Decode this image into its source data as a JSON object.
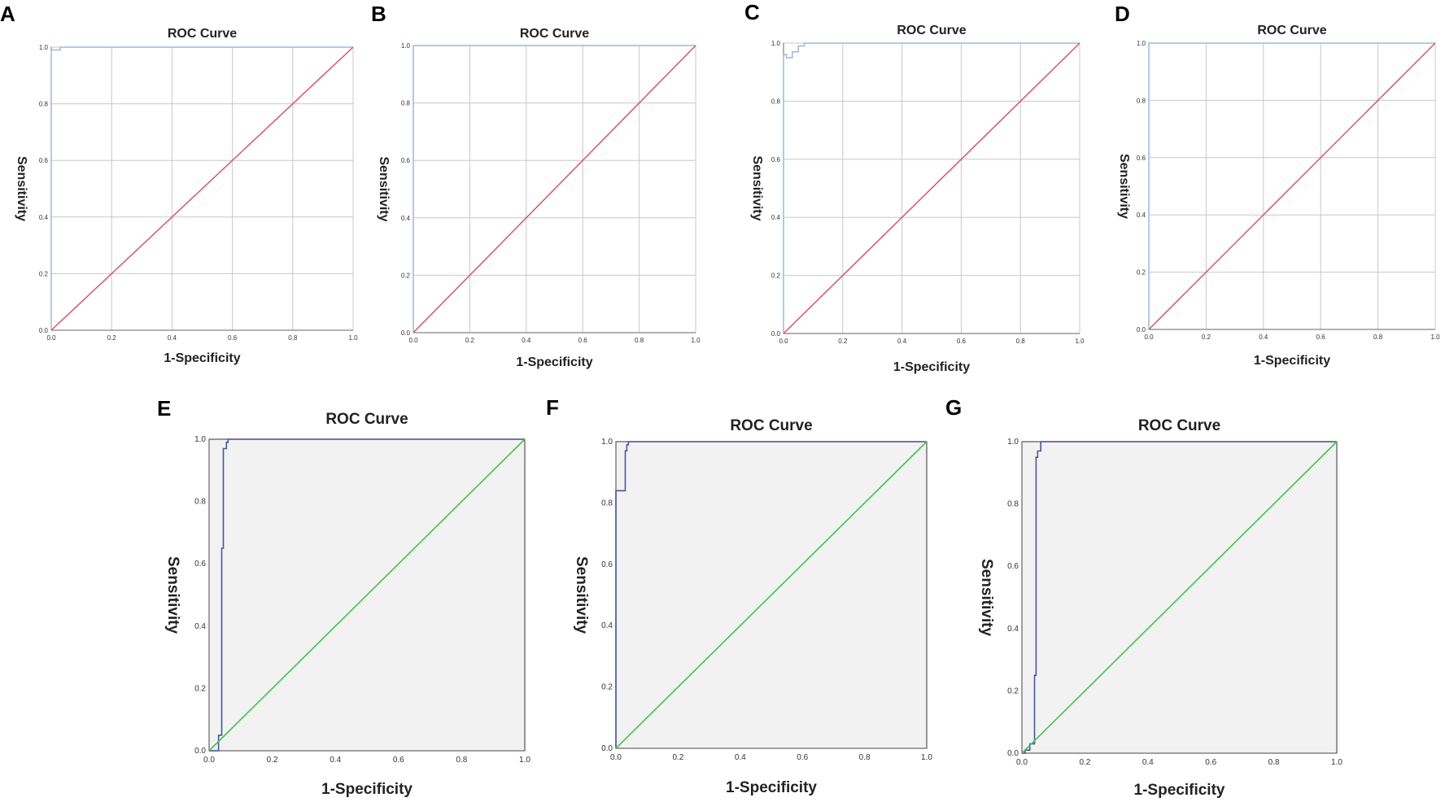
{
  "figure": {
    "panel_labels": [
      "A",
      "B",
      "C",
      "D",
      "E",
      "F",
      "G"
    ]
  },
  "colors": {
    "top_curve": "#9cb9dd",
    "top_reference": "#d9536b",
    "bottom_curve": "#4a55a2",
    "bottom_reference": "#45c24b",
    "bottom_plot_bg": "#f2f2f2",
    "grid": "#c8c8c8"
  },
  "chart_data": [
    {
      "panel": "A",
      "type": "line",
      "title": "ROC Curve",
      "xlabel": "1-Specificity",
      "ylabel": "Sensitivity",
      "xlim": [
        0,
        1
      ],
      "ylim": [
        0,
        1
      ],
      "xticks": [
        "0.0",
        "0.2",
        "0.4",
        "0.6",
        "0.8",
        "1.0"
      ],
      "yticks": [
        "0.0",
        "0.2",
        "0.4",
        "0.6",
        "0.8",
        "1.0"
      ],
      "grid": true,
      "style": "top",
      "series": [
        {
          "name": "ROC",
          "x": [
            0,
            0,
            0.03,
            0.03,
            1
          ],
          "y": [
            0,
            0.99,
            0.99,
            1,
            1
          ]
        },
        {
          "name": "Reference Line",
          "x": [
            0,
            1
          ],
          "y": [
            0,
            1
          ]
        }
      ]
    },
    {
      "panel": "B",
      "type": "line",
      "title": "ROC Curve",
      "xlabel": "1-Specificity",
      "ylabel": "Sensitivity",
      "xlim": [
        0,
        1
      ],
      "ylim": [
        0,
        1
      ],
      "xticks": [
        "0.0",
        "0.2",
        "0.4",
        "0.6",
        "0.8",
        "1.0"
      ],
      "yticks": [
        "0.0",
        "0.2",
        "0.4",
        "0.6",
        "0.8",
        "1.0"
      ],
      "grid": true,
      "style": "top",
      "series": [
        {
          "name": "ROC",
          "x": [
            0,
            0,
            1
          ],
          "y": [
            0,
            1,
            1
          ]
        },
        {
          "name": "Reference Line",
          "x": [
            0,
            1
          ],
          "y": [
            0,
            1
          ]
        }
      ]
    },
    {
      "panel": "C",
      "type": "line",
      "title": "ROC Curve",
      "xlabel": "1-Specificity",
      "ylabel": "Sensitivity",
      "xlim": [
        0,
        1
      ],
      "ylim": [
        0,
        1
      ],
      "xticks": [
        "0.0",
        "0.2",
        "0.4",
        "0.6",
        "0.8",
        "1.0"
      ],
      "yticks": [
        "0.0",
        "0.2",
        "0.4",
        "0.6",
        "0.8",
        "1.0"
      ],
      "grid": true,
      "style": "top",
      "series": [
        {
          "name": "ROC",
          "x": [
            0,
            0,
            0.01,
            0.01,
            0.03,
            0.03,
            0.05,
            0.05,
            0.07,
            0.07,
            1
          ],
          "y": [
            0,
            0.96,
            0.96,
            0.95,
            0.95,
            0.97,
            0.97,
            0.99,
            0.99,
            1,
            1
          ]
        },
        {
          "name": "Reference Line",
          "x": [
            0,
            1
          ],
          "y": [
            0,
            1
          ]
        }
      ]
    },
    {
      "panel": "D",
      "type": "line",
      "title": "ROC Curve",
      "xlabel": "1-Specificity",
      "ylabel": "Sensitivity",
      "xlim": [
        0,
        1
      ],
      "ylim": [
        0,
        1
      ],
      "xticks": [
        "0.0",
        "0.2",
        "0.4",
        "0.6",
        "0.8",
        "1.0"
      ],
      "yticks": [
        "0.0",
        "0.2",
        "0.4",
        "0.6",
        "0.8",
        "1.0"
      ],
      "grid": true,
      "style": "top",
      "series": [
        {
          "name": "ROC",
          "x": [
            0,
            0,
            1
          ],
          "y": [
            0,
            1,
            1
          ]
        },
        {
          "name": "Reference Line",
          "x": [
            0,
            1
          ],
          "y": [
            0,
            1
          ]
        }
      ]
    },
    {
      "panel": "E",
      "type": "line",
      "title": "ROC Curve",
      "xlabel": "1-Specificity",
      "ylabel": "Sensitivity",
      "xlim": [
        0,
        1
      ],
      "ylim": [
        0,
        1
      ],
      "xticks": [
        "0.0",
        "0.2",
        "0.4",
        "0.6",
        "0.8",
        "1.0"
      ],
      "yticks": [
        "0.0",
        "0.2",
        "0.4",
        "0.6",
        "0.8",
        "1.0"
      ],
      "grid": false,
      "style": "bottom",
      "series": [
        {
          "name": "ROC",
          "x": [
            0,
            0.03,
            0.03,
            0.04,
            0.04,
            0.045,
            0.045,
            0.055,
            0.055,
            0.06,
            0.06,
            1
          ],
          "y": [
            0,
            0,
            0.05,
            0.05,
            0.65,
            0.65,
            0.97,
            0.97,
            0.99,
            0.99,
            1,
            1
          ]
        },
        {
          "name": "Reference Line",
          "x": [
            0,
            1
          ],
          "y": [
            0,
            1
          ]
        }
      ]
    },
    {
      "panel": "F",
      "type": "line",
      "title": "ROC Curve",
      "xlabel": "1-Specificity",
      "ylabel": "Sensitivity",
      "xlim": [
        0,
        1
      ],
      "ylim": [
        0,
        1
      ],
      "xticks": [
        "0.0",
        "0.2",
        "0.4",
        "0.6",
        "0.8",
        "1.0"
      ],
      "yticks": [
        "0.0",
        "0.2",
        "0.4",
        "0.6",
        "0.8",
        "1.0"
      ],
      "grid": false,
      "style": "bottom",
      "series": [
        {
          "name": "ROC",
          "x": [
            0,
            0,
            0.03,
            0.03,
            0.035,
            0.035,
            0.04,
            0.04,
            1
          ],
          "y": [
            0,
            0.84,
            0.84,
            0.97,
            0.97,
            0.99,
            0.99,
            1,
            1
          ]
        },
        {
          "name": "Reference Line",
          "x": [
            0,
            1
          ],
          "y": [
            0,
            1
          ]
        }
      ]
    },
    {
      "panel": "G",
      "type": "line",
      "title": "ROC Curve",
      "xlabel": "1-Specificity",
      "ylabel": "Sensitivity",
      "xlim": [
        0,
        1
      ],
      "ylim": [
        0,
        1
      ],
      "xticks": [
        "0.0",
        "0.2",
        "0.4",
        "0.6",
        "0.8",
        "1.0"
      ],
      "yticks": [
        "0.0",
        "0.2",
        "0.4",
        "0.6",
        "0.8",
        "1.0"
      ],
      "grid": false,
      "style": "bottom",
      "series": [
        {
          "name": "ROC",
          "x": [
            0,
            0.01,
            0.01,
            0.025,
            0.025,
            0.04,
            0.04,
            0.045,
            0.045,
            0.05,
            0.05,
            0.06,
            0.06,
            1
          ],
          "y": [
            0,
            0,
            0.01,
            0.01,
            0.03,
            0.03,
            0.25,
            0.25,
            0.95,
            0.95,
            0.97,
            0.97,
            1,
            1
          ]
        },
        {
          "name": "Reference Line",
          "x": [
            0,
            1
          ],
          "y": [
            0,
            1
          ]
        }
      ]
    }
  ]
}
